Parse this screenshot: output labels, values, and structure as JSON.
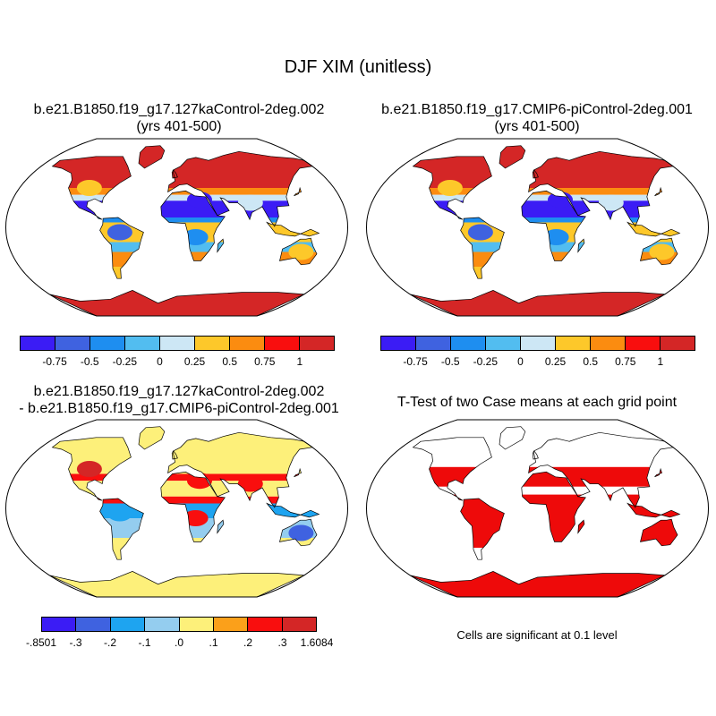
{
  "title": "DJF XIM (unitless)",
  "panels": [
    {
      "id": "p1",
      "line1": "b.e21.B1850.f19_g17.127kaControl-2deg.002",
      "line2": "(yrs 401-500)"
    },
    {
      "id": "p2",
      "line1": "b.e21.B1850.f19_g17.CMIP6-piControl-2deg.001",
      "line2": "(yrs 401-500)"
    },
    {
      "id": "p3",
      "line1": "b.e21.B1850.f19_g17.127kaControl-2deg.002",
      "line2": "- b.e21.B1850.f19_g17.CMIP6-piControl-2deg.001"
    },
    {
      "id": "p4",
      "line1": "T-Test of two Case means at each grid point",
      "line2": ""
    }
  ],
  "colorbar_main": {
    "colors": [
      "#3b1cf5",
      "#3f62e0",
      "#1e8ef0",
      "#52bdf0",
      "#cde7f5",
      "#fdc82a",
      "#fb8c10",
      "#f90e0e",
      "#d42626"
    ],
    "labels": [
      "-0.75",
      "-0.5",
      "-0.25",
      "0",
      "0.25",
      "0.5",
      "0.75",
      "1"
    ]
  },
  "colorbar_diff": {
    "colors": [
      "#3b1cf5",
      "#3f62e0",
      "#1ea4f0",
      "#94cdef",
      "#fdf07a",
      "#fba01a",
      "#f90e0e",
      "#d42626"
    ],
    "labels": [
      "-.8501",
      "-.3",
      "-.2",
      "-.1",
      ".0",
      ".1",
      ".2",
      ".3",
      "1.6084"
    ]
  },
  "ttest_note": "Cells are significant at 0.1 level",
  "ttest_color": "#ee0a0a"
}
